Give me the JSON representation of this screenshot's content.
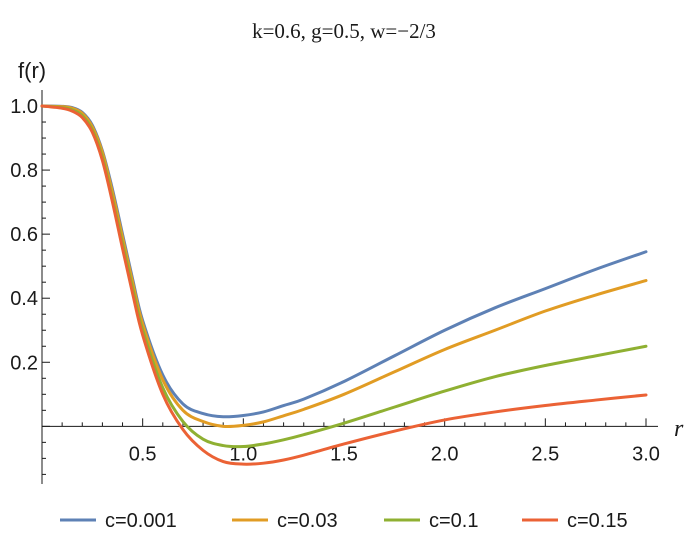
{
  "chart_data": {
    "type": "line",
    "title": "k=0.6, g=0.5, w=−2/3",
    "xlabel": "r",
    "ylabel": "f(r)",
    "xlim": [
      0,
      3.0
    ],
    "ylim": [
      -0.18,
      1.05
    ],
    "x_ticks": [
      0.5,
      1.0,
      1.5,
      2.0,
      2.5,
      3.0
    ],
    "x_tick_labels": [
      "0.5",
      "1.0",
      "1.5",
      "2.0",
      "2.5",
      "3.0"
    ],
    "y_ticks": [
      0.2,
      0.4,
      0.6,
      0.8,
      1.0
    ],
    "y_tick_labels": [
      "0.2",
      "0.4",
      "0.6",
      "0.8",
      "1.0"
    ],
    "legend_position": "bottom",
    "grid": false,
    "x": [
      0.0,
      0.1,
      0.15,
      0.2,
      0.25,
      0.3,
      0.35,
      0.4,
      0.45,
      0.5,
      0.6,
      0.7,
      0.8,
      0.9,
      1.0,
      1.1,
      1.2,
      1.3,
      1.5,
      1.75,
      2.0,
      2.25,
      2.5,
      2.75,
      3.0
    ],
    "series": [
      {
        "name": "c=0.001",
        "color": "#5e81b5",
        "values": [
          1.0,
          0.999,
          0.995,
          0.98,
          0.94,
          0.86,
          0.74,
          0.6,
          0.46,
          0.33,
          0.16,
          0.07,
          0.04,
          0.03,
          0.034,
          0.045,
          0.065,
          0.085,
          0.14,
          0.22,
          0.3,
          0.37,
          0.43,
          0.49,
          0.545
        ]
      },
      {
        "name": "c=0.03",
        "color": "#e19c24",
        "values": [
          1.0,
          0.998,
          0.993,
          0.977,
          0.935,
          0.855,
          0.73,
          0.59,
          0.45,
          0.32,
          0.145,
          0.05,
          0.015,
          0.0,
          0.003,
          0.014,
          0.033,
          0.053,
          0.1,
          0.17,
          0.24,
          0.3,
          0.36,
          0.41,
          0.455
        ]
      },
      {
        "name": "c=0.1",
        "color": "#8fb032",
        "values": [
          1.0,
          0.995,
          0.988,
          0.97,
          0.925,
          0.84,
          0.71,
          0.57,
          0.43,
          0.3,
          0.12,
          0.015,
          -0.04,
          -0.06,
          -0.063,
          -0.055,
          -0.042,
          -0.026,
          0.01,
          0.06,
          0.11,
          0.155,
          0.19,
          0.22,
          0.25
        ]
      },
      {
        "name": "c=0.15",
        "color": "#eb6235",
        "values": [
          1.0,
          0.993,
          0.984,
          0.964,
          0.918,
          0.83,
          0.7,
          0.555,
          0.415,
          0.285,
          0.1,
          -0.01,
          -0.075,
          -0.11,
          -0.118,
          -0.115,
          -0.105,
          -0.09,
          -0.055,
          -0.015,
          0.02,
          0.045,
          0.065,
          0.082,
          0.098
        ]
      }
    ]
  }
}
